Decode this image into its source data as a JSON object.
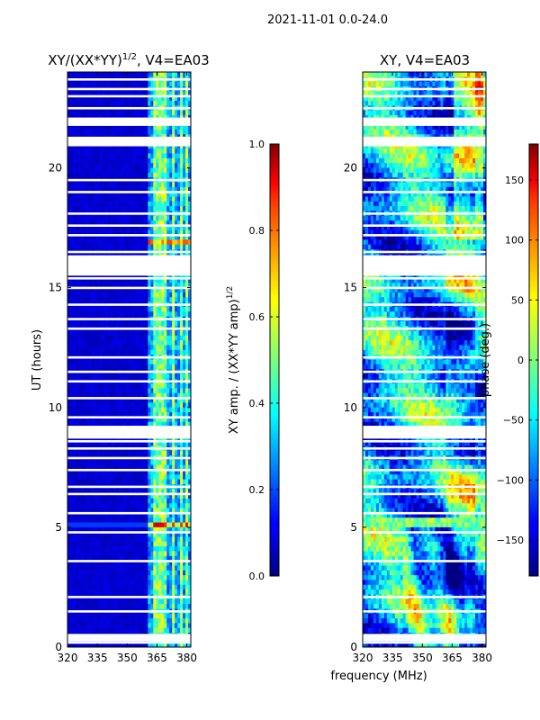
{
  "chart_data": {
    "suptitle": "2021-11-01 0.0-24.0",
    "xlabel_shared": "frequency (MHz)",
    "panels": [
      {
        "id": "amp",
        "type": "heatmap",
        "title": "XY/(XX*YY)^{1/2}, V4=EA03",
        "title_main": "XY/(XX*YY)",
        "title_sup": "1/2",
        "title_tail": ", V4=EA03",
        "ylabel": "UT (hours)",
        "xlim": [
          320,
          382
        ],
        "ylim": [
          0,
          24
        ],
        "xticks": [
          320,
          335,
          350,
          365,
          380
        ],
        "yticks": [
          0,
          5,
          10,
          15,
          20
        ],
        "colorscale": "jet",
        "bright_channel_bands_MHz": [
          [
            363,
            366.5
          ],
          [
            367,
            370.5
          ],
          [
            372,
            374.5
          ],
          [
            376.5,
            378.5
          ],
          [
            379,
            381
          ]
        ],
        "high_row_UT_hours": [
          5.0,
          5.25
        ],
        "low_row_UT_hours": [
          16.75,
          16.9
        ],
        "colorbar": {
          "label_main": "XY amp. / (XX*YY amp)",
          "label_sup": "1/2",
          "vmin": 0.0,
          "vmax": 1.0,
          "ticks": [
            "0.0",
            "0.2",
            "0.4",
            "0.6",
            "0.8",
            "1.0"
          ],
          "tick_values": [
            0.0,
            0.2,
            0.4,
            0.6,
            0.8,
            1.0
          ]
        }
      },
      {
        "id": "phase",
        "type": "heatmap",
        "title": "XY, V4=EA03",
        "title_main": "XY, V4=EA03",
        "title_sup": "",
        "title_tail": "",
        "ylabel": "",
        "xlim": [
          320,
          382
        ],
        "ylim": [
          0,
          24
        ],
        "xticks": [
          320,
          335,
          350,
          365,
          380
        ],
        "yticks": [
          0,
          5,
          10,
          15,
          20
        ],
        "colorscale": "jet",
        "colorbar": {
          "label_main": "phase (deg.)",
          "label_sup": "",
          "vmin": -180,
          "vmax": 180,
          "ticks": [
            "−150",
            "−100",
            "−50",
            "0",
            "50",
            "100",
            "150"
          ],
          "tick_values": [
            -150,
            -100,
            -50,
            0,
            50,
            100,
            150
          ]
        }
      }
    ],
    "flagged_UT_hours": [
      0.2,
      0.3,
      0.4,
      0.5,
      1.5,
      2.1,
      3.6,
      4.8,
      5.6,
      6.4,
      6.7,
      7.4,
      7.9,
      8.3,
      8.6,
      8.8,
      9.2,
      9.6,
      10.4,
      11.1,
      11.5,
      12.1,
      13.3,
      13.7,
      14.3,
      15.0,
      15.4,
      15.7,
      15.9,
      16.1,
      16.3,
      16.5,
      17.2,
      17.6,
      18.1,
      19.0,
      19.5,
      21.0,
      21.2,
      21.9,
      22.5,
      23.0,
      23.3,
      23.7
    ],
    "flagged_UT_spans": [
      [
        8.7,
        9.15
      ],
      [
        15.5,
        16.35
      ],
      [
        20.9,
        21.3
      ],
      [
        21.75,
        22.1
      ],
      [
        0.35,
        0.55
      ]
    ]
  }
}
